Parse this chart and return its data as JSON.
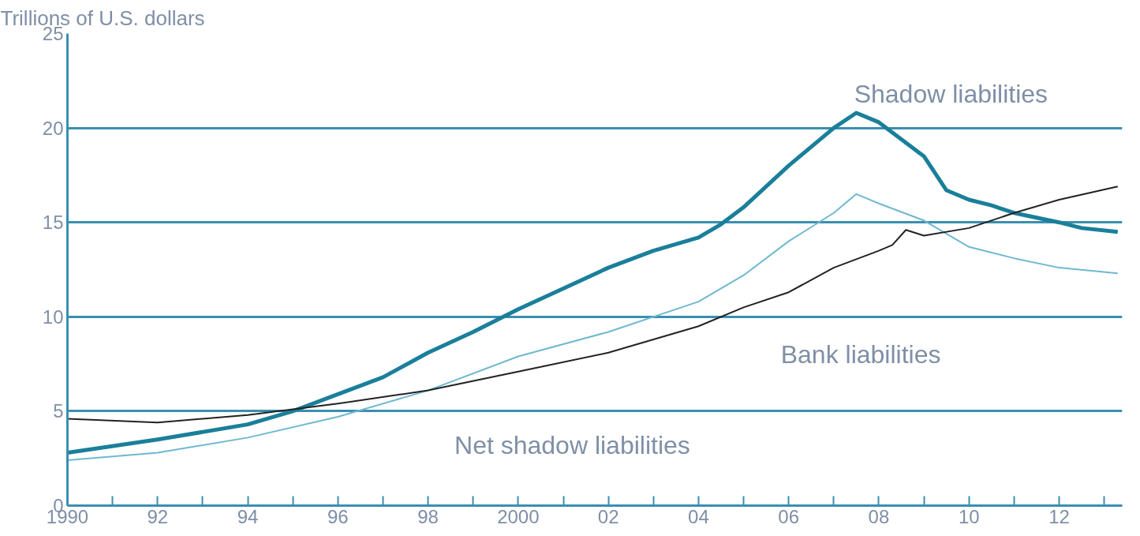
{
  "chart_data": {
    "type": "line",
    "ylabel": "Trillions of U.S. dollars",
    "xlim": [
      1990,
      2013.4
    ],
    "ylim": [
      0,
      25
    ],
    "yticks": [
      0,
      5,
      10,
      15,
      20,
      25
    ],
    "xticks": [
      {
        "value": 1990,
        "label": "1990"
      },
      {
        "value": 1991,
        "label": null
      },
      {
        "value": 1992,
        "label": "92"
      },
      {
        "value": 1993,
        "label": null
      },
      {
        "value": 1994,
        "label": "94"
      },
      {
        "value": 1995,
        "label": null
      },
      {
        "value": 1996,
        "label": "96"
      },
      {
        "value": 1997,
        "label": null
      },
      {
        "value": 1998,
        "label": "98"
      },
      {
        "value": 1999,
        "label": null
      },
      {
        "value": 2000,
        "label": "2000"
      },
      {
        "value": 2001,
        "label": null
      },
      {
        "value": 2002,
        "label": "02"
      },
      {
        "value": 2003,
        "label": null
      },
      {
        "value": 2004,
        "label": "04"
      },
      {
        "value": 2005,
        "label": null
      },
      {
        "value": 2006,
        "label": "06"
      },
      {
        "value": 2007,
        "label": null
      },
      {
        "value": 2008,
        "label": "08"
      },
      {
        "value": 2009,
        "label": null
      },
      {
        "value": 2010,
        "label": "10"
      },
      {
        "value": 2011,
        "label": null
      },
      {
        "value": 2012,
        "label": "12"
      },
      {
        "value": 2013,
        "label": null
      }
    ],
    "grid": "y",
    "line_style": "solid",
    "marker": "none",
    "series": [
      {
        "name": "Shadow liabilities",
        "color": "#1a7f9a",
        "x": [
          1990,
          1992,
          1994,
          1995,
          1996,
          1997,
          1998,
          1999,
          2000,
          2001,
          2002,
          2003,
          2004,
          2004.5,
          2005,
          2006,
          2007,
          2007.5,
          2008,
          2008.5,
          2009,
          2009.5,
          2010,
          2010.5,
          2011,
          2012,
          2012.5,
          2013.3
        ],
        "values": [
          2.8,
          3.5,
          4.3,
          5.0,
          5.9,
          6.8,
          8.1,
          9.2,
          10.4,
          11.5,
          12.6,
          13.5,
          14.2,
          14.9,
          15.8,
          18.0,
          20.0,
          20.8,
          20.3,
          19.4,
          18.5,
          16.7,
          16.2,
          15.9,
          15.5,
          15.0,
          14.7,
          14.5
        ]
      },
      {
        "name": "Net shadow liabilities",
        "color": "#6fb8d0",
        "x": [
          1990,
          1992,
          1994,
          1996,
          1998,
          2000,
          2002,
          2004,
          2005,
          2006,
          2007,
          2007.5,
          2008,
          2009,
          2010,
          2011,
          2012,
          2013.3
        ],
        "values": [
          2.4,
          2.8,
          3.6,
          4.7,
          6.1,
          7.9,
          9.2,
          10.8,
          12.2,
          14.0,
          15.5,
          16.5,
          16.0,
          15.1,
          13.7,
          13.1,
          12.6,
          12.3
        ]
      },
      {
        "name": "Bank liabilities",
        "color": "#222222",
        "x": [
          1990,
          1992,
          1994,
          1996,
          1998,
          2000,
          2002,
          2004,
          2005,
          2006,
          2007,
          2008,
          2008.3,
          2008.6,
          2009,
          2010,
          2011,
          2012,
          2013.3
        ],
        "values": [
          4.6,
          4.4,
          4.8,
          5.4,
          6.1,
          7.1,
          8.1,
          9.5,
          10.5,
          11.3,
          12.6,
          13.5,
          13.8,
          14.6,
          14.3,
          14.7,
          15.5,
          16.2,
          16.9
        ]
      }
    ]
  }
}
